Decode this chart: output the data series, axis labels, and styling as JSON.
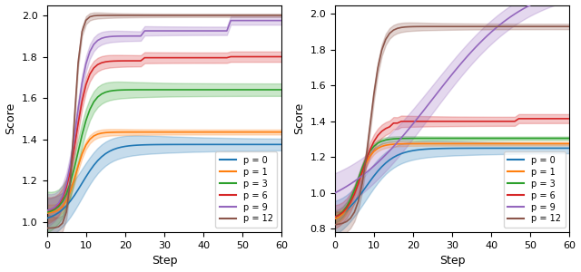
{
  "colors": {
    "p0": "#1f77b4",
    "p1": "#ff7f0e",
    "p3": "#2ca02c",
    "p6": "#d62728",
    "p9": "#9467bd",
    "p12": "#8c564b"
  },
  "legend_labels": [
    "p = 0",
    "p = 1",
    "p = 3",
    "p = 6",
    "p = 9",
    "p = 12"
  ],
  "xlabel": "Step",
  "ylabel": "Score",
  "left_ylim": [
    0.95,
    2.05
  ],
  "right_ylim": [
    0.78,
    2.05
  ],
  "xlim": [
    0,
    60
  ]
}
